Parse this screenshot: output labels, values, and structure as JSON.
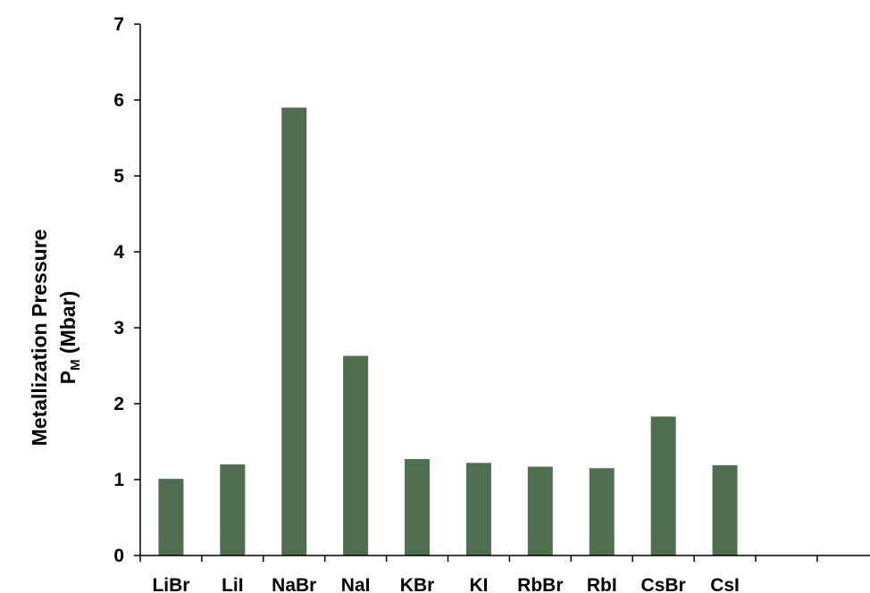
{
  "chart_data": {
    "type": "bar",
    "categories": [
      "LiBr",
      "LiI",
      "NaBr",
      "NaI",
      "KBr",
      "KI",
      "RbBr",
      "RbI",
      "CsBr",
      "CsI"
    ],
    "values": [
      1.01,
      1.2,
      5.9,
      2.63,
      1.27,
      1.22,
      1.17,
      1.15,
      1.83,
      1.19
    ],
    "ylabel": "Metallization Pressure",
    "ylabel_line2_main": "P",
    "ylabel_line2_sub": "M",
    "ylabel_line2_unit": " (Mbar)",
    "ylim": [
      0,
      7
    ],
    "yticks": [
      "0",
      "1",
      "2",
      "3",
      "4",
      "5",
      "6",
      "7"
    ],
    "bar_color": "#4f6f4f",
    "grid": false,
    "legend": "none"
  }
}
